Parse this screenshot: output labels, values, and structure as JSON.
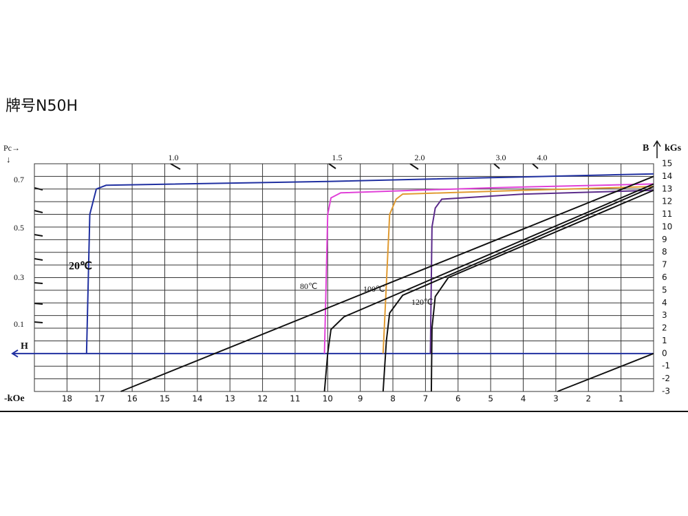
{
  "chart_data": {
    "type": "line",
    "title": "牌号N50H",
    "x_label": "-kOe",
    "y_label": "B",
    "y_unit": "kGs",
    "h_label": "H",
    "pc_label": "Pc→",
    "pc_arrow": "↓",
    "pc_labels": [
      "0.7",
      "0.5",
      "0.3",
      "0.1"
    ],
    "top_labels": [
      "1.0",
      "1.5",
      "2.0",
      "3.0",
      "4.0"
    ],
    "xlim": [
      19,
      0
    ],
    "ylim": [
      -3,
      15
    ],
    "xticks": [
      18,
      17,
      16,
      15,
      14,
      13,
      12,
      11,
      10,
      9,
      8,
      7,
      6,
      5,
      4,
      3,
      2,
      1
    ],
    "yticks": [
      15,
      14,
      13,
      12,
      11,
      10,
      9,
      8,
      7,
      6,
      5,
      4,
      3,
      2,
      1,
      0,
      -1,
      -2,
      -3
    ],
    "grid": true,
    "series": [
      {
        "name": "20℃",
        "color": "#1f2fa0",
        "x": [
          0,
          10,
          16.8,
          17.1,
          17.3,
          17.4
        ],
        "values": [
          14.2,
          13.6,
          13.3,
          13.0,
          11,
          0
        ]
      },
      {
        "name": "80℃",
        "color": "#e040d8",
        "x": [
          0,
          5,
          9.6,
          9.9,
          10.0,
          10.1
        ],
        "values": [
          13.4,
          13.1,
          12.7,
          12.3,
          11,
          0
        ]
      },
      {
        "name": "100℃",
        "color": "#e09a30",
        "x": [
          0,
          4,
          7.7,
          7.9,
          8.1,
          8.3
        ],
        "values": [
          13.2,
          12.9,
          12.6,
          12.2,
          11,
          0
        ]
      },
      {
        "name": "120℃",
        "color": "#5a2a8a",
        "x": [
          0,
          4,
          6.5,
          6.7,
          6.8,
          6.85
        ],
        "values": [
          12.9,
          12.6,
          12.2,
          11.5,
          10,
          0
        ]
      },
      {
        "color": "#111111",
        "x": [
          0,
          16.35
        ],
        "values": [
          14.0,
          -3
        ]
      },
      {
        "color": "#111111",
        "x": [
          0,
          9.5,
          9.9,
          10.0,
          10.1
        ],
        "values": [
          13.4,
          2.9,
          1.9,
          0,
          -3
        ]
      },
      {
        "color": "#111111",
        "x": [
          0,
          7.7,
          8.1,
          8.2,
          8.3
        ],
        "values": [
          13.2,
          4.6,
          3.2,
          1,
          -3
        ]
      },
      {
        "color": "#111111",
        "x": [
          0,
          6.3,
          6.7,
          6.8,
          6.82
        ],
        "values": [
          12.9,
          6.0,
          4.5,
          2,
          -3
        ]
      },
      {
        "color": "#111111",
        "x": [
          0,
          2.95
        ],
        "values": [
          0,
          -3
        ]
      }
    ]
  }
}
